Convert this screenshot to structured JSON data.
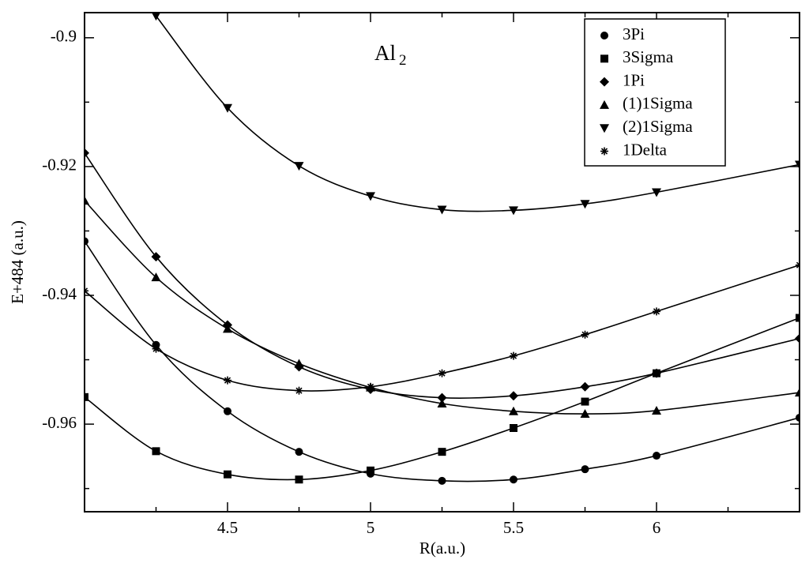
{
  "chart_data": {
    "type": "line",
    "annotation": {
      "text": "Al",
      "subscript": "2"
    },
    "xlabel": "R(a.u.)",
    "ylabel": "E+484 (a.u.)",
    "x": [
      4.0,
      4.25,
      4.5,
      4.75,
      5.0,
      5.25,
      5.5,
      5.75,
      6.0,
      6.5
    ],
    "xlim": [
      4.0,
      6.5
    ],
    "xticks": [
      4.5,
      5,
      5.5,
      6
    ],
    "xminorticks": [
      4.25,
      4.75,
      5.25,
      5.75,
      6.25
    ],
    "ylim": [
      -0.9736,
      -0.8961
    ],
    "yticks": [
      -0.96,
      -0.94,
      -0.92,
      -0.9
    ],
    "yminorticks": [
      -0.97,
      -0.95,
      -0.93,
      -0.91
    ],
    "smooth": true,
    "legend": "top-right",
    "series": [
      {
        "name": "3Pi",
        "color": "#000000",
        "marker": "circle",
        "values": [
          -0.9316,
          -0.9477,
          -0.958,
          -0.9643,
          -0.9677,
          -0.9688,
          -0.9686,
          -0.967,
          -0.9649,
          -0.959
        ]
      },
      {
        "name": "3Sigma",
        "color": "#000000",
        "marker": "square",
        "values": [
          -0.9558,
          -0.9642,
          -0.9678,
          -0.9686,
          -0.9672,
          -0.9643,
          -0.9606,
          -0.9565,
          -0.9521,
          -0.9435
        ]
      },
      {
        "name": "1Pi",
        "color": "#000000",
        "marker": "diamond",
        "values": [
          -0.9179,
          -0.934,
          -0.9446,
          -0.9511,
          -0.9546,
          -0.9559,
          -0.9556,
          -0.9542,
          -0.9521,
          -0.9467
        ]
      },
      {
        "name": "(1)1Sigma",
        "color": "#000000",
        "marker": "triangle-up",
        "values": [
          -0.9253,
          -0.9372,
          -0.9452,
          -0.9506,
          -0.9543,
          -0.9568,
          -0.958,
          -0.9584,
          -0.9579,
          -0.9551
        ]
      },
      {
        "name": "(2)1Sigma",
        "color": "#000000",
        "marker": "triangle-down",
        "values": [
          null,
          -0.8966,
          -0.9109,
          -0.9199,
          -0.9246,
          -0.9267,
          -0.9268,
          -0.9258,
          -0.924,
          -0.9197
        ]
      },
      {
        "name": "1Delta",
        "color": "#000000",
        "marker": "asterisk",
        "values": [
          -0.9393,
          -0.9483,
          -0.9532,
          -0.9548,
          -0.9542,
          -0.9521,
          -0.9494,
          -0.9461,
          -0.9425,
          -0.9353
        ]
      }
    ]
  }
}
